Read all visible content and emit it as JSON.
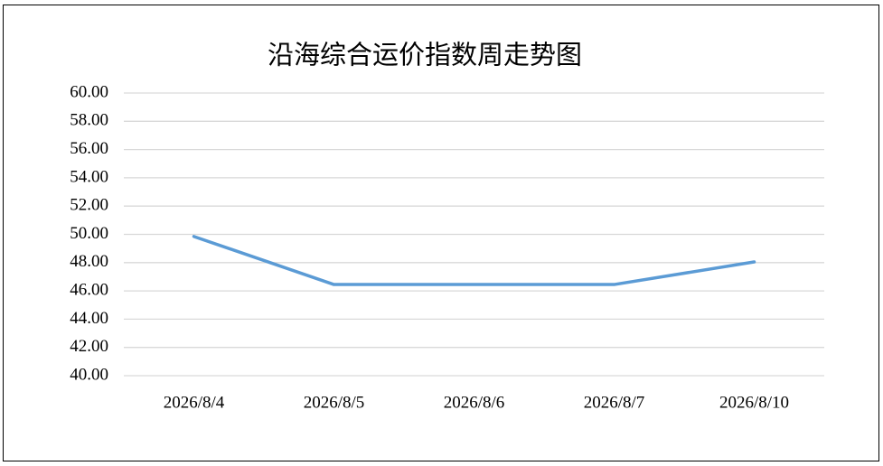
{
  "chart_data": {
    "type": "line",
    "title": "沿海综合运价指数周走势图",
    "categories": [
      "2026/8/4",
      "2026/8/5",
      "2026/8/6",
      "2026/8/7",
      "2026/8/10"
    ],
    "series": [
      {
        "name": "沿海综合运价指数",
        "color": "#5b9bd5",
        "values": [
          49.85,
          46.45,
          46.45,
          46.45,
          48.05
        ]
      }
    ],
    "ylim": [
      40,
      60
    ],
    "yticks": [
      {
        "value": 40,
        "label": "40.00"
      },
      {
        "value": 42,
        "label": "42.00"
      },
      {
        "value": 44,
        "label": "44.00"
      },
      {
        "value": 46,
        "label": "46.00"
      },
      {
        "value": 48,
        "label": "48.00"
      },
      {
        "value": 50,
        "label": "50.00"
      },
      {
        "value": 52,
        "label": "52.00"
      },
      {
        "value": 54,
        "label": "54.00"
      },
      {
        "value": 56,
        "label": "56.00"
      },
      {
        "value": 58,
        "label": "58.00"
      },
      {
        "value": 60,
        "label": "60.00"
      }
    ],
    "grid": true,
    "legend": false
  }
}
